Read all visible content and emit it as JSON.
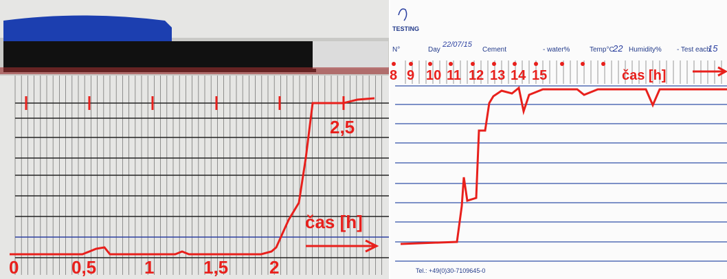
{
  "left_panel": {
    "time_labels": [
      "0",
      "0,5",
      "1",
      "1,5",
      "2"
    ],
    "upper_label": "2,5",
    "axis_label": "čas [h]"
  },
  "right_panel": {
    "logo": "TESTING",
    "form_fields": [
      "N°",
      "Day",
      "Cement",
      "- water%",
      "Temp°C",
      "Humidity%",
      "- Test each"
    ],
    "handwritten": [
      "22/07/15",
      "22",
      "15"
    ],
    "time_labels": [
      "8",
      "9",
      "10",
      "11",
      "12",
      "13",
      "14",
      "15"
    ],
    "axis_label": "čas [h]",
    "footer": "Tel.: +49(0)30-7109645-0"
  }
}
